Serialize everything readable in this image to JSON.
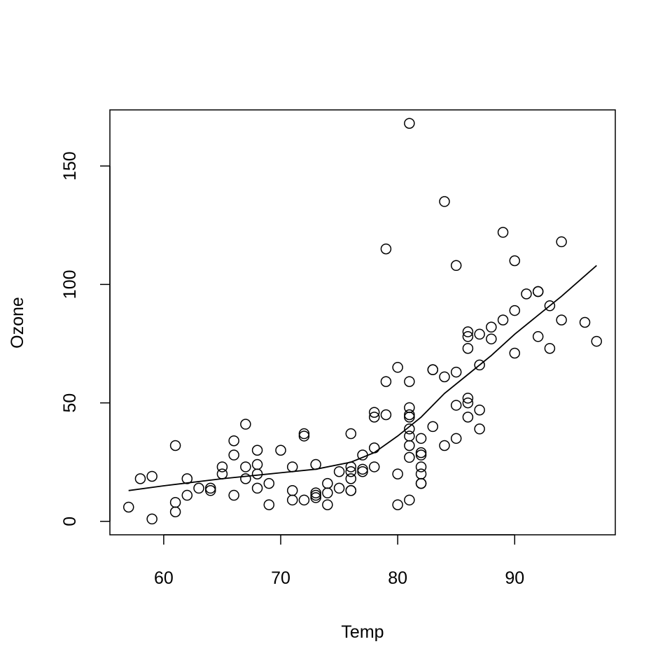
{
  "chart_data": {
    "type": "scatter",
    "title": "",
    "xlabel": "Temp",
    "ylabel": "Ozone",
    "xlim": [
      55.4,
      98.6
    ],
    "ylim": [
      -5.68,
      173.68
    ],
    "x_ticks": [
      "60",
      "70",
      "80",
      "90"
    ],
    "y_ticks": [
      "0",
      "50",
      "100",
      "150"
    ],
    "x_tick_values": [
      60,
      70,
      80,
      90
    ],
    "y_tick_values": [
      0,
      50,
      100,
      150
    ],
    "grid": false,
    "legend": "none",
    "point_color": "#000000",
    "points": [
      {
        "x": 57,
        "y": 6
      },
      {
        "x": 58,
        "y": 18
      },
      {
        "x": 59,
        "y": 1
      },
      {
        "x": 59,
        "y": 19
      },
      {
        "x": 61,
        "y": 32
      },
      {
        "x": 61,
        "y": 8
      },
      {
        "x": 61,
        "y": 4
      },
      {
        "x": 62,
        "y": 18
      },
      {
        "x": 62,
        "y": 11
      },
      {
        "x": 63,
        "y": 14
      },
      {
        "x": 64,
        "y": 14
      },
      {
        "x": 64,
        "y": 13
      },
      {
        "x": 65,
        "y": 23
      },
      {
        "x": 65,
        "y": 20
      },
      {
        "x": 66,
        "y": 34
      },
      {
        "x": 66,
        "y": 28
      },
      {
        "x": 66,
        "y": 11
      },
      {
        "x": 67,
        "y": 41
      },
      {
        "x": 67,
        "y": 23
      },
      {
        "x": 67,
        "y": 18
      },
      {
        "x": 68,
        "y": 30
      },
      {
        "x": 68,
        "y": 24
      },
      {
        "x": 68,
        "y": 20
      },
      {
        "x": 68,
        "y": 14
      },
      {
        "x": 69,
        "y": 16
      },
      {
        "x": 69,
        "y": 7
      },
      {
        "x": 70,
        "y": 30
      },
      {
        "x": 71,
        "y": 23
      },
      {
        "x": 71,
        "y": 13
      },
      {
        "x": 71,
        "y": 9
      },
      {
        "x": 72,
        "y": 37
      },
      {
        "x": 72,
        "y": 36
      },
      {
        "x": 72,
        "y": 9
      },
      {
        "x": 73,
        "y": 24
      },
      {
        "x": 73,
        "y": 12
      },
      {
        "x": 73,
        "y": 11
      },
      {
        "x": 73,
        "y": 10
      },
      {
        "x": 74,
        "y": 16
      },
      {
        "x": 74,
        "y": 12
      },
      {
        "x": 74,
        "y": 7
      },
      {
        "x": 75,
        "y": 21
      },
      {
        "x": 75,
        "y": 14
      },
      {
        "x": 76,
        "y": 37
      },
      {
        "x": 76,
        "y": 23
      },
      {
        "x": 76,
        "y": 21
      },
      {
        "x": 76,
        "y": 18
      },
      {
        "x": 76,
        "y": 13
      },
      {
        "x": 76,
        "y": 13
      },
      {
        "x": 77,
        "y": 28
      },
      {
        "x": 77,
        "y": 22
      },
      {
        "x": 77,
        "y": 21
      },
      {
        "x": 78,
        "y": 46
      },
      {
        "x": 78,
        "y": 44
      },
      {
        "x": 78,
        "y": 31
      },
      {
        "x": 78,
        "y": 23
      },
      {
        "x": 79,
        "y": 115
      },
      {
        "x": 79,
        "y": 59
      },
      {
        "x": 79,
        "y": 45
      },
      {
        "x": 80,
        "y": 65
      },
      {
        "x": 80,
        "y": 20
      },
      {
        "x": 80,
        "y": 7
      },
      {
        "x": 81,
        "y": 168
      },
      {
        "x": 81,
        "y": 59
      },
      {
        "x": 81,
        "y": 48
      },
      {
        "x": 81,
        "y": 45
      },
      {
        "x": 81,
        "y": 44
      },
      {
        "x": 81,
        "y": 39
      },
      {
        "x": 81,
        "y": 36
      },
      {
        "x": 81,
        "y": 32
      },
      {
        "x": 81,
        "y": 27
      },
      {
        "x": 81,
        "y": 9
      },
      {
        "x": 82,
        "y": 35
      },
      {
        "x": 82,
        "y": 29
      },
      {
        "x": 82,
        "y": 28
      },
      {
        "x": 82,
        "y": 23
      },
      {
        "x": 82,
        "y": 20
      },
      {
        "x": 82,
        "y": 16
      },
      {
        "x": 82,
        "y": 16
      },
      {
        "x": 83,
        "y": 64
      },
      {
        "x": 83,
        "y": 64
      },
      {
        "x": 83,
        "y": 40
      },
      {
        "x": 84,
        "y": 135
      },
      {
        "x": 84,
        "y": 61
      },
      {
        "x": 84,
        "y": 32
      },
      {
        "x": 85,
        "y": 108
      },
      {
        "x": 85,
        "y": 63
      },
      {
        "x": 85,
        "y": 49
      },
      {
        "x": 85,
        "y": 35
      },
      {
        "x": 86,
        "y": 80
      },
      {
        "x": 86,
        "y": 78
      },
      {
        "x": 86,
        "y": 73
      },
      {
        "x": 86,
        "y": 52
      },
      {
        "x": 86,
        "y": 50
      },
      {
        "x": 86,
        "y": 44
      },
      {
        "x": 87,
        "y": 79
      },
      {
        "x": 87,
        "y": 66
      },
      {
        "x": 87,
        "y": 47
      },
      {
        "x": 87,
        "y": 39
      },
      {
        "x": 88,
        "y": 82
      },
      {
        "x": 88,
        "y": 77
      },
      {
        "x": 89,
        "y": 122
      },
      {
        "x": 89,
        "y": 85
      },
      {
        "x": 90,
        "y": 110
      },
      {
        "x": 90,
        "y": 89
      },
      {
        "x": 90,
        "y": 71
      },
      {
        "x": 91,
        "y": 96
      },
      {
        "x": 92,
        "y": 97
      },
      {
        "x": 92,
        "y": 97
      },
      {
        "x": 92,
        "y": 78
      },
      {
        "x": 93,
        "y": 91
      },
      {
        "x": 93,
        "y": 73
      },
      {
        "x": 94,
        "y": 118
      },
      {
        "x": 94,
        "y": 85
      },
      {
        "x": 96,
        "y": 84
      },
      {
        "x": 97,
        "y": 76
      }
    ],
    "smooth_line": [
      {
        "x": 57,
        "y": 13
      },
      {
        "x": 60,
        "y": 15
      },
      {
        "x": 65,
        "y": 18
      },
      {
        "x": 70,
        "y": 20.5
      },
      {
        "x": 73,
        "y": 22
      },
      {
        "x": 76,
        "y": 25
      },
      {
        "x": 78,
        "y": 29
      },
      {
        "x": 80,
        "y": 36
      },
      {
        "x": 82,
        "y": 44
      },
      {
        "x": 84,
        "y": 54
      },
      {
        "x": 86,
        "y": 62
      },
      {
        "x": 88,
        "y": 70
      },
      {
        "x": 90,
        "y": 79
      },
      {
        "x": 92,
        "y": 87
      },
      {
        "x": 94,
        "y": 95
      },
      {
        "x": 97,
        "y": 108
      }
    ]
  }
}
